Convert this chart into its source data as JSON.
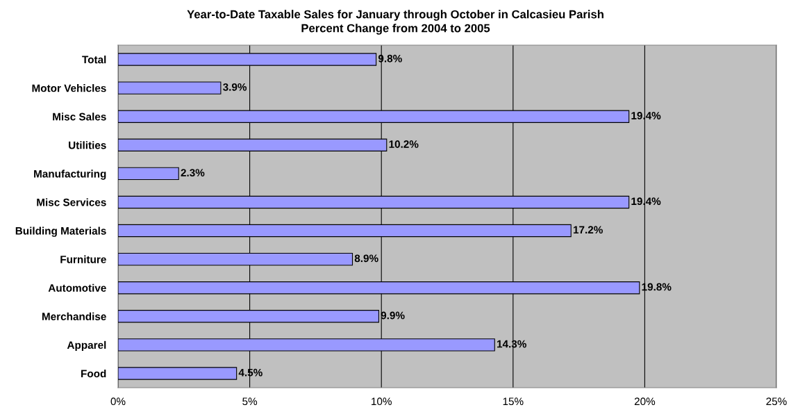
{
  "chart_data": {
    "type": "bar",
    "orientation": "horizontal",
    "title": "Year-to-Date Taxable Sales for January through October in Calcasieu Parish",
    "subtitle": "Percent Change from 2004 to 2005",
    "categories": [
      "Total",
      "Motor Vehicles",
      "Misc Sales",
      "Utilities",
      "Manufacturing",
      "Misc Services",
      "Building Materials",
      "Furniture",
      "Automotive",
      "Merchandise",
      "Apparel",
      "Food"
    ],
    "values": [
      9.8,
      3.9,
      19.4,
      10.2,
      2.3,
      19.4,
      17.2,
      8.9,
      19.8,
      9.9,
      14.3,
      4.5
    ],
    "value_labels": [
      "9.8%",
      "3.9%",
      "19.4%",
      "10.2%",
      "2.3%",
      "19.4%",
      "17.2%",
      "8.9%",
      "19.8%",
      "9.9%",
      "14.3%",
      "4.5%"
    ],
    "color": "#9999ff",
    "xlim": [
      0,
      25
    ],
    "xticks": [
      {
        "value": 0,
        "label": "0%"
      },
      {
        "value": 5,
        "label": "5%"
      },
      {
        "value": 10,
        "label": "10%"
      },
      {
        "value": 15,
        "label": "15%"
      },
      {
        "value": 20,
        "label": "20%"
      },
      {
        "value": 25,
        "label": "25%"
      }
    ],
    "grid": "x"
  }
}
